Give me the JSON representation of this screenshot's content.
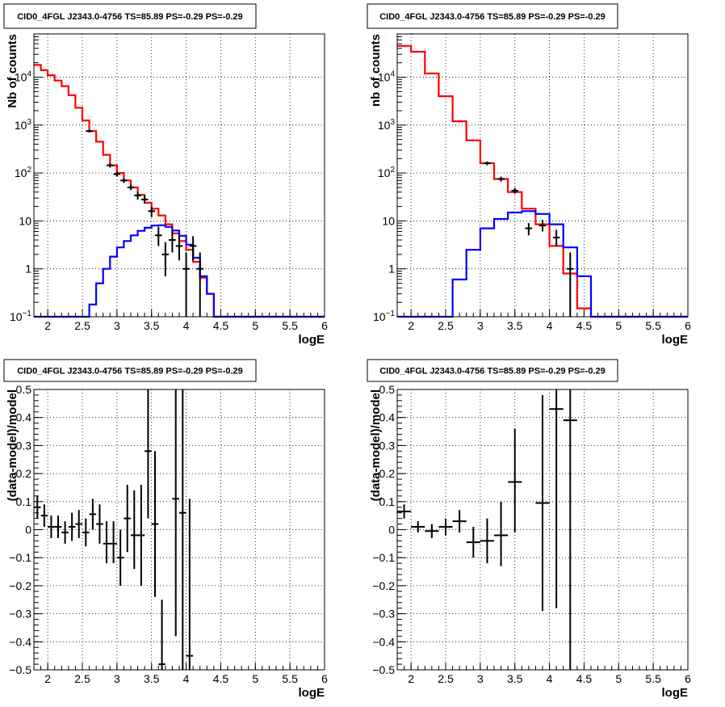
{
  "colors": {
    "data": "#000000",
    "model": "#ff0000",
    "source": "#0000ff",
    "grid": "#000000"
  },
  "chart_data": [
    {
      "type": "line",
      "title": "CID0_4FGL J2343.0-4756 TS=85.89 PS=-0.29 PS=-0.29",
      "xlabel": "logE",
      "ylabel": "Nb of counts",
      "log_y": true,
      "grid": true,
      "xlim": [
        1.8,
        6.0
      ],
      "ylim": [
        0.1,
        80000
      ],
      "x_ticks": [
        "2",
        "2.5",
        "3",
        "3.5",
        "4",
        "4.5",
        "5",
        "5.5",
        "6"
      ],
      "y_ticks": [
        {
          "value": 0.1,
          "base": "10",
          "exp": "−1"
        },
        {
          "value": 1,
          "label": "1"
        },
        {
          "value": 10,
          "label": "10"
        },
        {
          "value": 100,
          "base": "10",
          "exp": "2"
        },
        {
          "value": 1000,
          "base": "10",
          "exp": "3"
        },
        {
          "value": 10000,
          "base": "10",
          "exp": "4"
        }
      ],
      "bin_edges": [
        1.8,
        1.9,
        2.0,
        2.1,
        2.2,
        2.3,
        2.4,
        2.5,
        2.6,
        2.7,
        2.8,
        2.9,
        3.0,
        3.1,
        3.2,
        3.3,
        3.4,
        3.5,
        3.6,
        3.7,
        3.8,
        3.9,
        4.0,
        4.1,
        4.2,
        4.3,
        4.4,
        4.5,
        4.6,
        4.7,
        4.8,
        4.9,
        5.0,
        5.1,
        5.2,
        5.3,
        5.4,
        5.5,
        5.6,
        5.7,
        5.8,
        5.9,
        6.0
      ],
      "series": [
        {
          "role": "model",
          "values": [
            18000,
            14000,
            11000,
            8500,
            6500,
            4200,
            2300,
            1250,
            750,
            450,
            240,
            145,
            100,
            70,
            50,
            35,
            24,
            18,
            13,
            8.5,
            5.5,
            3.8,
            2.5,
            1.4,
            0.65,
            0.3,
            0.1,
            0.1,
            0.1,
            0.1,
            0.1,
            0.1,
            0.1,
            0.1,
            0.1,
            0.1,
            0.1,
            0.1,
            0.1,
            0.1,
            0.1,
            0.1
          ]
        },
        {
          "role": "source",
          "values": [
            0.1,
            0.1,
            0.1,
            0.1,
            0.1,
            0.1,
            0.1,
            0.1,
            0.18,
            0.5,
            1.0,
            1.8,
            2.8,
            3.8,
            5.0,
            6.2,
            7.2,
            8.0,
            8.1,
            7.5,
            6.3,
            4.9,
            3.2,
            1.7,
            0.7,
            0.3,
            0.1,
            0.1,
            0.1,
            0.1,
            0.1,
            0.1,
            0.1,
            0.1,
            0.1,
            0.1,
            0.1,
            0.1,
            0.1,
            0.1,
            0.1,
            0.1
          ]
        }
      ],
      "points": [
        {
          "x": 2.6,
          "y": 750,
          "ylo": 700,
          "yhi": 800
        },
        {
          "x": 2.9,
          "y": 145,
          "ylo": 130,
          "yhi": 160
        },
        {
          "x": 3.0,
          "y": 95,
          "ylo": 85,
          "yhi": 106
        },
        {
          "x": 3.1,
          "y": 70,
          "ylo": 62,
          "yhi": 78
        },
        {
          "x": 3.2,
          "y": 50,
          "ylo": 44,
          "yhi": 57
        },
        {
          "x": 3.3,
          "y": 34,
          "ylo": 28,
          "yhi": 40
        },
        {
          "x": 3.4,
          "y": 28,
          "ylo": 23,
          "yhi": 34
        },
        {
          "x": 3.5,
          "y": 16,
          "ylo": 12,
          "yhi": 20
        },
        {
          "x": 3.6,
          "y": 5,
          "ylo": 3,
          "yhi": 7.5
        },
        {
          "x": 3.7,
          "y": 2,
          "ylo": 0.7,
          "yhi": 3.6
        },
        {
          "x": 3.8,
          "y": 4,
          "ylo": 2.2,
          "yhi": 6
        },
        {
          "x": 3.9,
          "y": 3,
          "ylo": 1.5,
          "yhi": 4.8
        },
        {
          "x": 4.0,
          "y": 1,
          "ylo": 0.1,
          "yhi": 2.2
        },
        {
          "x": 4.1,
          "y": 3,
          "ylo": 1.5,
          "yhi": 4.8
        },
        {
          "x": 4.2,
          "y": 1,
          "ylo": 0.1,
          "yhi": 2.2
        }
      ]
    },
    {
      "type": "line",
      "title": "CID0_4FGL J2343.0-4756 TS=85.89 PS=-0.29 PS=-0.29",
      "xlabel": "logE",
      "ylabel": "nb of counts",
      "log_y": true,
      "grid": true,
      "xlim": [
        1.8,
        6.0
      ],
      "ylim": [
        0.1,
        80000
      ],
      "x_ticks": [
        "2",
        "2.5",
        "3",
        "3.5",
        "4",
        "4.5",
        "5",
        "5.5",
        "6"
      ],
      "y_ticks": [
        {
          "value": 0.1,
          "base": "10",
          "exp": "−1"
        },
        {
          "value": 1,
          "label": "1"
        },
        {
          "value": 10,
          "label": "10"
        },
        {
          "value": 100,
          "base": "10",
          "exp": "2"
        },
        {
          "value": 1000,
          "base": "10",
          "exp": "3"
        },
        {
          "value": 10000,
          "base": "10",
          "exp": "4"
        }
      ],
      "bin_edges": [
        1.8,
        2.0,
        2.2,
        2.4,
        2.6,
        2.8,
        3.0,
        3.2,
        3.4,
        3.6,
        3.8,
        4.0,
        4.2,
        4.4,
        4.6,
        4.8,
        5.0,
        5.2,
        5.4,
        5.6,
        5.8,
        6.0
      ],
      "series": [
        {
          "role": "model",
          "values": [
            45000,
            34000,
            12000,
            4000,
            1200,
            480,
            160,
            75,
            40,
            18,
            8.5,
            3.0,
            0.8,
            0.15,
            0.1,
            0.1,
            0.1,
            0.1,
            0.1,
            0.1,
            0.1
          ]
        },
        {
          "role": "source",
          "values": [
            0.1,
            0.1,
            0.1,
            0.1,
            0.6,
            2.5,
            7.0,
            11,
            15,
            16,
            14,
            8.5,
            2.8,
            0.7,
            0.1,
            0.1,
            0.1,
            0.1,
            0.1,
            0.1,
            0.1
          ]
        }
      ],
      "points": [
        {
          "x": 3.1,
          "y": 160,
          "ylo": 145,
          "yhi": 175
        },
        {
          "x": 3.3,
          "y": 75,
          "ylo": 66,
          "yhi": 84
        },
        {
          "x": 3.5,
          "y": 43,
          "ylo": 37,
          "yhi": 49
        },
        {
          "x": 3.7,
          "y": 7,
          "ylo": 5,
          "yhi": 9
        },
        {
          "x": 3.9,
          "y": 8,
          "ylo": 6,
          "yhi": 10.5
        },
        {
          "x": 4.1,
          "y": 4.5,
          "ylo": 3,
          "yhi": 6.5
        },
        {
          "x": 4.3,
          "y": 1,
          "ylo": 0.1,
          "yhi": 2.2
        }
      ]
    },
    {
      "type": "scatter",
      "title": "CID0_4FGL J2343.0-4756 TS=85.89 PS=-0.29 PS=-0.29",
      "xlabel": "logE",
      "ylabel": "(data-model)/model",
      "grid": true,
      "xlim": [
        1.8,
        6.0
      ],
      "ylim": [
        -0.5,
        0.5
      ],
      "x_ticks": [
        "2",
        "2.5",
        "3",
        "3.5",
        "4",
        "4.5",
        "5",
        "5.5",
        "6"
      ],
      "y_ticks": [
        "−0.5",
        "−0.4",
        "−0.3",
        "−0.2",
        "−0.1",
        "0",
        "0.1",
        "0.2",
        "0.3",
        "0.4",
        "0.5"
      ],
      "xerr": 0.05,
      "points": [
        {
          "x": 1.85,
          "y": 0.08,
          "ylo": 0.04,
          "yhi": 0.12
        },
        {
          "x": 1.95,
          "y": 0.05,
          "ylo": 0.01,
          "yhi": 0.09
        },
        {
          "x": 2.05,
          "y": 0.01,
          "ylo": -0.03,
          "yhi": 0.05
        },
        {
          "x": 2.15,
          "y": 0.01,
          "ylo": -0.03,
          "yhi": 0.05
        },
        {
          "x": 2.25,
          "y": -0.01,
          "ylo": -0.05,
          "yhi": 0.03
        },
        {
          "x": 2.35,
          "y": 0.01,
          "ylo": -0.04,
          "yhi": 0.06
        },
        {
          "x": 2.45,
          "y": 0.02,
          "ylo": -0.03,
          "yhi": 0.07
        },
        {
          "x": 2.55,
          "y": -0.01,
          "ylo": -0.06,
          "yhi": 0.04
        },
        {
          "x": 2.65,
          "y": 0.055,
          "ylo": 0.0,
          "yhi": 0.11
        },
        {
          "x": 2.75,
          "y": 0.02,
          "ylo": -0.05,
          "yhi": 0.09
        },
        {
          "x": 2.85,
          "y": -0.05,
          "ylo": -0.12,
          "yhi": 0.03
        },
        {
          "x": 2.95,
          "y": -0.05,
          "ylo": -0.12,
          "yhi": 0.03
        },
        {
          "x": 3.05,
          "y": -0.1,
          "ylo": -0.2,
          "yhi": 0.0
        },
        {
          "x": 3.15,
          "y": 0.04,
          "ylo": -0.08,
          "yhi": 0.16
        },
        {
          "x": 3.25,
          "y": -0.02,
          "ylo": -0.14,
          "yhi": 0.14
        },
        {
          "x": 3.35,
          "y": -0.02,
          "ylo": -0.2,
          "yhi": 0.16
        },
        {
          "x": 3.45,
          "y": 0.28,
          "ylo": 0.04,
          "yhi": 0.52
        },
        {
          "x": 3.55,
          "y": 0.02,
          "ylo": -0.24,
          "yhi": 0.28
        },
        {
          "x": 3.65,
          "y": -0.48,
          "ylo": -0.5,
          "yhi": -0.25
        },
        {
          "x": 3.85,
          "y": 0.11,
          "ylo": -0.38,
          "yhi": 0.5
        },
        {
          "x": 3.95,
          "y": 0.06,
          "ylo": -0.5,
          "yhi": 0.5
        },
        {
          "x": 4.05,
          "y": -0.45,
          "ylo": -0.5,
          "yhi": 0.11
        }
      ]
    },
    {
      "type": "scatter",
      "title": "CID0_4FGL J2343.0-4756 TS=85.89 PS=-0.29 PS=-0.29",
      "xlabel": "logE",
      "ylabel": "(data-model)/model",
      "grid": true,
      "xlim": [
        1.8,
        6.0
      ],
      "ylim": [
        -0.5,
        0.5
      ],
      "x_ticks": [
        "2",
        "2.5",
        "3",
        "3.5",
        "4",
        "4.5",
        "5",
        "5.5",
        "6"
      ],
      "y_ticks": [
        "−0.5",
        "−0.4",
        "−0.3",
        "−0.2",
        "−0.1",
        "0",
        "0.1",
        "0.2",
        "0.3",
        "0.4",
        "0.5"
      ],
      "xerr": 0.1,
      "points": [
        {
          "x": 1.9,
          "y": 0.065,
          "ylo": 0.04,
          "yhi": 0.09
        },
        {
          "x": 2.1,
          "y": 0.01,
          "ylo": -0.01,
          "yhi": 0.03
        },
        {
          "x": 2.3,
          "y": -0.005,
          "ylo": -0.03,
          "yhi": 0.02
        },
        {
          "x": 2.5,
          "y": 0.01,
          "ylo": -0.02,
          "yhi": 0.04
        },
        {
          "x": 2.7,
          "y": 0.03,
          "ylo": -0.01,
          "yhi": 0.07
        },
        {
          "x": 2.9,
          "y": -0.045,
          "ylo": -0.1,
          "yhi": 0.01
        },
        {
          "x": 3.1,
          "y": -0.04,
          "ylo": -0.12,
          "yhi": 0.04
        },
        {
          "x": 3.3,
          "y": -0.02,
          "ylo": -0.13,
          "yhi": 0.1
        },
        {
          "x": 3.5,
          "y": 0.17,
          "ylo": -0.01,
          "yhi": 0.36
        },
        {
          "x": 3.9,
          "y": 0.095,
          "ylo": -0.29,
          "yhi": 0.48
        },
        {
          "x": 4.1,
          "y": 0.43,
          "ylo": -0.28,
          "yhi": 0.5
        },
        {
          "x": 4.3,
          "y": 0.39,
          "ylo": -0.5,
          "yhi": 0.5
        }
      ]
    }
  ]
}
